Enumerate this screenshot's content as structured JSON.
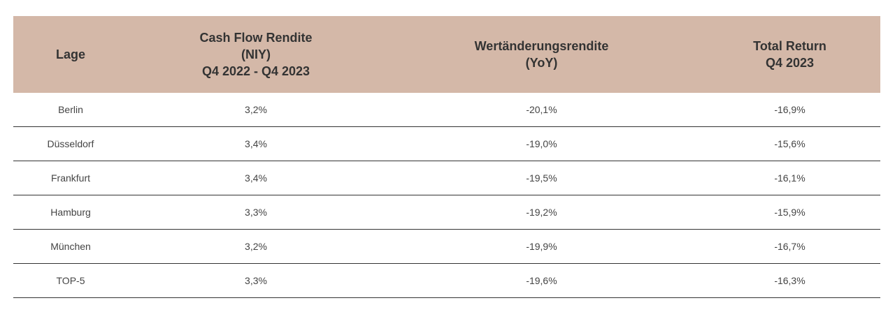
{
  "table": {
    "headers": {
      "lage": [
        "Lage"
      ],
      "cash_flow": [
        "Cash Flow Rendite",
        "(NIY)",
        "Q4 2022 - Q4 2023"
      ],
      "wertaenderung": [
        "Wertänderungsrendite",
        "(YoY)"
      ],
      "total_return": [
        "Total Return",
        "Q4 2023"
      ]
    },
    "rows": [
      {
        "lage": "Berlin",
        "cash_flow": "3,2%",
        "wertaenderung": "-20,1%",
        "total_return": "-16,9%"
      },
      {
        "lage": "Düsseldorf",
        "cash_flow": "3,4%",
        "wertaenderung": "-19,0%",
        "total_return": "-15,6%"
      },
      {
        "lage": "Frankfurt",
        "cash_flow": "3,4%",
        "wertaenderung": "-19,5%",
        "total_return": "-16,1%"
      },
      {
        "lage": "Hamburg",
        "cash_flow": "3,3%",
        "wertaenderung": "-19,2%",
        "total_return": "-15,9%"
      },
      {
        "lage": "München",
        "cash_flow": "3,2%",
        "wertaenderung": "-19,9%",
        "total_return": "-16,7%"
      },
      {
        "lage": "TOP-5",
        "cash_flow": "3,3%",
        "wertaenderung": "-19,6%",
        "total_return": "-16,3%"
      }
    ]
  },
  "colors": {
    "header_background": "#d4b8a8",
    "header_text": "#333333",
    "cell_text": "#444444",
    "row_divider": "#333333"
  }
}
